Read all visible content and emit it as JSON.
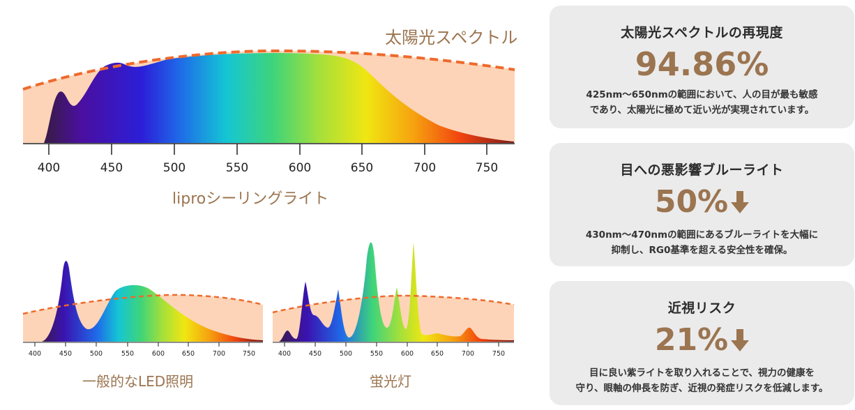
{
  "main_chart": {
    "title": "太陽光スペクトル",
    "caption": "liproシーリングライト",
    "ticks": [
      "400",
      "450",
      "500",
      "550",
      "600",
      "650",
      "700",
      "750"
    ]
  },
  "led_chart": {
    "caption": "一般的なLED照明",
    "ticks": [
      "400",
      "450",
      "500",
      "550",
      "600",
      "650",
      "700",
      "750"
    ]
  },
  "fluorescent_chart": {
    "caption": "蛍光灯",
    "ticks": [
      "400",
      "450",
      "500",
      "550",
      "600",
      "650",
      "700",
      "750"
    ]
  },
  "cards": [
    {
      "title": "太陽光スペクトルの再現度",
      "value": "94.86%",
      "has_down_arrow": false,
      "desc_line1": "425nm〜650nmの範囲において、人の目が最も敏感",
      "desc_line2": "であり、太陽光に極めて近い光が実現されています。"
    },
    {
      "title": "目への悪影響ブルーライト",
      "value": "50%",
      "has_down_arrow": true,
      "desc_line1": "430nm〜470nmの範囲にあるブルーライトを大幅に",
      "desc_line2": "抑制し、RG0基準を超える安全性を確保。"
    },
    {
      "title": "近視リスク",
      "value": "21%",
      "has_down_arrow": true,
      "desc_line1": "目に良い紫ライトを取り入れることで、視力の健康を",
      "desc_line2": "守り、眼軸の伸長を防ぎ、近視の発症リスクを低減します。"
    }
  ],
  "colors": {
    "accent_brown": "#9b7450",
    "sun_fill": "#fdd4b8",
    "sun_dash": "#ee6a2c",
    "card_bg": "#ebebeb"
  }
}
